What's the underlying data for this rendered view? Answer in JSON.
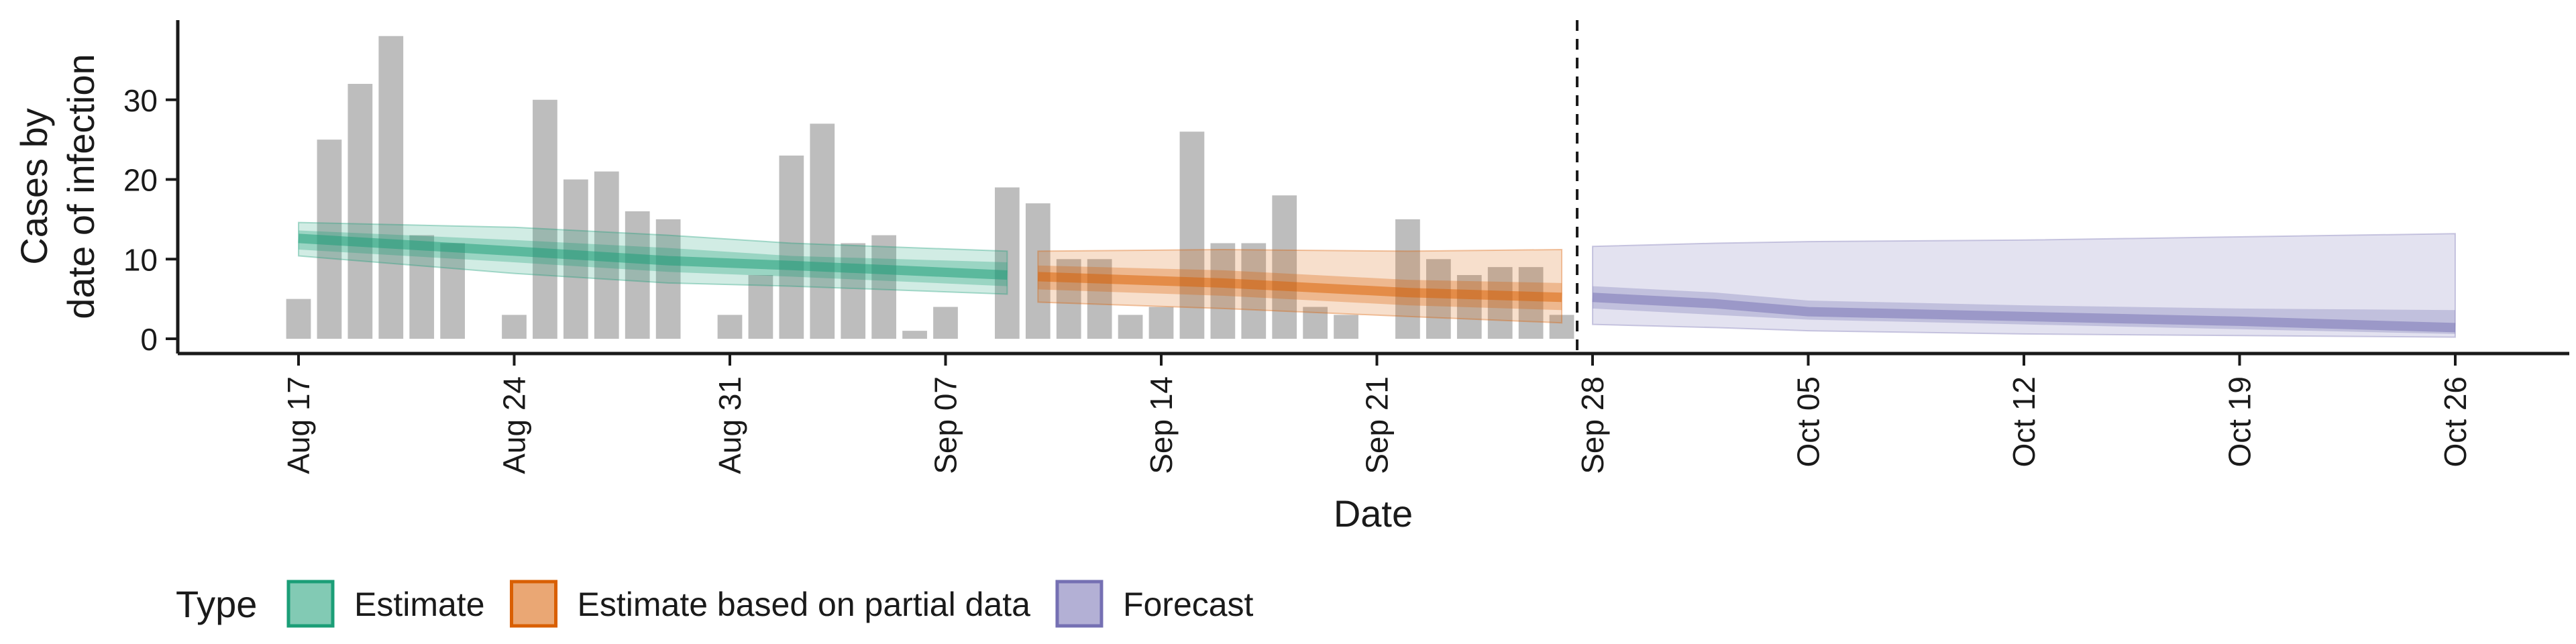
{
  "chart_data": {
    "type": "bar",
    "xlabel": "Date",
    "ylabel_lines": [
      "Cases by",
      "date of infection"
    ],
    "ylim": [
      0,
      40
    ],
    "yticks": [
      0,
      10,
      20,
      30
    ],
    "x_range": [
      "2020-08-12",
      "2020-10-29"
    ],
    "xticks": [
      {
        "date": "2020-08-17",
        "label": "Aug 17"
      },
      {
        "date": "2020-08-24",
        "label": "Aug 24"
      },
      {
        "date": "2020-08-31",
        "label": "Aug 31"
      },
      {
        "date": "2020-09-07",
        "label": "Sep 07"
      },
      {
        "date": "2020-09-14",
        "label": "Sep 14"
      },
      {
        "date": "2020-09-21",
        "label": "Sep 21"
      },
      {
        "date": "2020-09-28",
        "label": "Sep 28"
      },
      {
        "date": "2020-10-05",
        "label": "Oct 05"
      },
      {
        "date": "2020-10-12",
        "label": "Oct 12"
      },
      {
        "date": "2020-10-19",
        "label": "Oct 19"
      },
      {
        "date": "2020-10-26",
        "label": "Oct 26"
      }
    ],
    "observed_cases": [
      {
        "date": "2020-08-17",
        "value": 5
      },
      {
        "date": "2020-08-18",
        "value": 25
      },
      {
        "date": "2020-08-19",
        "value": 32
      },
      {
        "date": "2020-08-20",
        "value": 38
      },
      {
        "date": "2020-08-21",
        "value": 13
      },
      {
        "date": "2020-08-22",
        "value": 12
      },
      {
        "date": "2020-08-24",
        "value": 3
      },
      {
        "date": "2020-08-25",
        "value": 30
      },
      {
        "date": "2020-08-26",
        "value": 20
      },
      {
        "date": "2020-08-27",
        "value": 21
      },
      {
        "date": "2020-08-28",
        "value": 16
      },
      {
        "date": "2020-08-29",
        "value": 15
      },
      {
        "date": "2020-08-31",
        "value": 3
      },
      {
        "date": "2020-09-01",
        "value": 8
      },
      {
        "date": "2020-09-02",
        "value": 23
      },
      {
        "date": "2020-09-03",
        "value": 27
      },
      {
        "date": "2020-09-04",
        "value": 12
      },
      {
        "date": "2020-09-05",
        "value": 13
      },
      {
        "date": "2020-09-06",
        "value": 1
      },
      {
        "date": "2020-09-07",
        "value": 4
      },
      {
        "date": "2020-09-09",
        "value": 19
      },
      {
        "date": "2020-09-10",
        "value": 17
      },
      {
        "date": "2020-09-11",
        "value": 10
      },
      {
        "date": "2020-09-12",
        "value": 10
      },
      {
        "date": "2020-09-13",
        "value": 3
      },
      {
        "date": "2020-09-14",
        "value": 4
      },
      {
        "date": "2020-09-15",
        "value": 26
      },
      {
        "date": "2020-09-16",
        "value": 12
      },
      {
        "date": "2020-09-17",
        "value": 12
      },
      {
        "date": "2020-09-18",
        "value": 18
      },
      {
        "date": "2020-09-19",
        "value": 4
      },
      {
        "date": "2020-09-20",
        "value": 3
      },
      {
        "date": "2020-09-22",
        "value": 15
      },
      {
        "date": "2020-09-23",
        "value": 10
      },
      {
        "date": "2020-09-24",
        "value": 8
      },
      {
        "date": "2020-09-25",
        "value": 9
      },
      {
        "date": "2020-09-26",
        "value": 9
      },
      {
        "date": "2020-09-27",
        "value": 3
      }
    ],
    "forecast_start": "2020-09-27",
    "series": [
      {
        "name": "Estimate",
        "color": "#1b9e77",
        "points": [
          {
            "date": "2020-08-17",
            "median": 12.6,
            "lo50": 11.2,
            "hi50": 13.6,
            "lo90": 10.4,
            "hi90": 14.6
          },
          {
            "date": "2020-08-24",
            "median": 11.0,
            "lo50": 9.6,
            "hi50": 12.4,
            "lo90": 8.2,
            "hi90": 14.0
          },
          {
            "date": "2020-08-29",
            "median": 9.8,
            "lo50": 8.4,
            "hi50": 11.4,
            "lo90": 7.0,
            "hi90": 13.0
          },
          {
            "date": "2020-09-02",
            "median": 9.2,
            "lo50": 7.8,
            "hi50": 10.4,
            "lo90": 6.6,
            "hi90": 12.0
          },
          {
            "date": "2020-09-09",
            "median": 8.0,
            "lo50": 6.6,
            "hi50": 9.6,
            "lo90": 5.6,
            "hi90": 11.0
          }
        ]
      },
      {
        "name": "Estimate based on partial data",
        "color": "#d95f02",
        "points": [
          {
            "date": "2020-09-10",
            "median": 7.8,
            "lo50": 6.2,
            "hi50": 9.2,
            "lo90": 4.6,
            "hi90": 11.0
          },
          {
            "date": "2020-09-16",
            "median": 7.0,
            "lo50": 5.4,
            "hi50": 8.6,
            "lo90": 3.8,
            "hi90": 11.2
          },
          {
            "date": "2020-09-22",
            "median": 5.8,
            "lo50": 4.2,
            "hi50": 7.4,
            "lo90": 2.8,
            "hi90": 11.0
          },
          {
            "date": "2020-09-27",
            "median": 5.2,
            "lo50": 3.6,
            "hi50": 7.0,
            "lo90": 2.0,
            "hi90": 11.2
          }
        ]
      },
      {
        "name": "Forecast",
        "color": "#7570b3",
        "points": [
          {
            "date": "2020-09-28",
            "median": 5.2,
            "lo50": 3.8,
            "hi50": 6.6,
            "lo90": 1.8,
            "hi90": 11.6
          },
          {
            "date": "2020-10-02",
            "median": 4.4,
            "lo50": 3.0,
            "hi50": 5.8,
            "lo90": 1.4,
            "hi90": 12.0
          },
          {
            "date": "2020-10-05",
            "median": 3.4,
            "lo50": 2.4,
            "hi50": 4.8,
            "lo90": 1.0,
            "hi90": 12.2
          },
          {
            "date": "2020-10-12",
            "median": 2.8,
            "lo50": 1.8,
            "hi50": 4.2,
            "lo90": 0.6,
            "hi90": 12.4
          },
          {
            "date": "2020-10-19",
            "median": 2.2,
            "lo50": 1.2,
            "hi50": 3.8,
            "lo90": 0.4,
            "hi90": 12.8
          },
          {
            "date": "2020-10-26",
            "median": 1.4,
            "lo50": 0.6,
            "hi50": 3.6,
            "lo90": 0.2,
            "hi90": 13.2
          }
        ]
      }
    ],
    "legend": {
      "title": "Type",
      "position": "bottom",
      "items": [
        "Estimate",
        "Estimate based on partial data",
        "Forecast"
      ]
    },
    "grid": false
  }
}
